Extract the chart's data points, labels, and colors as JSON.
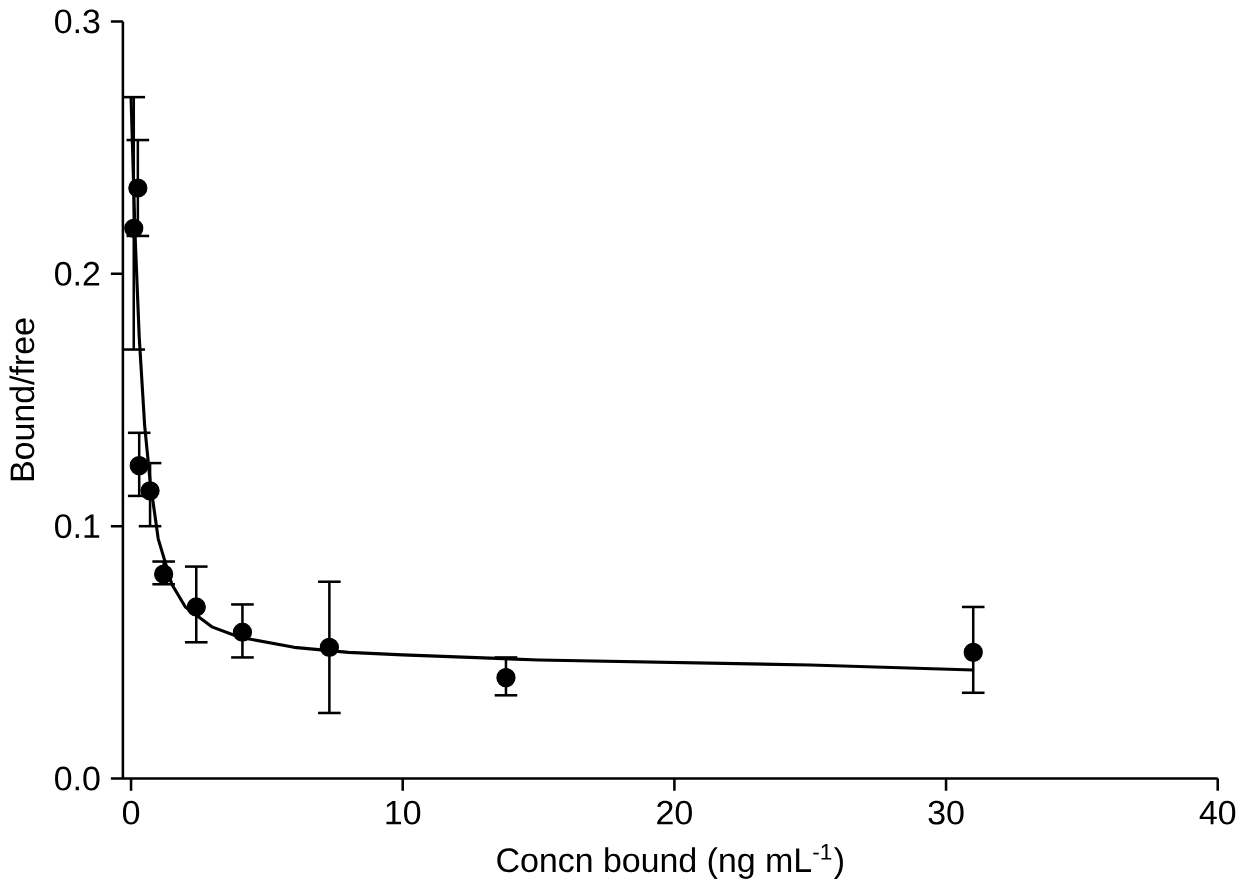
{
  "chart_data": {
    "type": "scatter",
    "xlabel": "Concn bound (ng mL$^{-1}$)",
    "ylabel": "Bound/free",
    "xlim": [
      -0.3,
      40
    ],
    "ylim": [
      0,
      0.3
    ],
    "xticks": [
      0,
      10,
      20,
      30,
      40
    ],
    "yticks": [
      {
        "value": 0,
        "label": "0.0"
      },
      {
        "value": 0.1,
        "label": "0.1"
      },
      {
        "value": 0.2,
        "label": "0.2"
      },
      {
        "value": 0.3,
        "label": "0.3"
      }
    ],
    "series": [
      {
        "color": "#000000",
        "marker": "circle",
        "x": [
          0.1,
          0.25,
          0.3,
          0.7,
          1.2,
          2.4,
          4.1,
          7.3,
          13.8,
          31
        ],
        "values": [
          0.218,
          0.234,
          0.124,
          0.114,
          0.081,
          0.068,
          0.058,
          0.052,
          0.04,
          0.05
        ],
        "errors": [
          [
            0.17,
            0.27
          ],
          [
            0.215,
            0.253
          ],
          [
            0.112,
            0.137
          ],
          [
            0.1,
            0.125
          ],
          [
            0.077,
            0.086
          ],
          [
            0.054,
            0.084
          ],
          [
            0.048,
            0.069
          ],
          [
            0.026,
            0.078
          ],
          [
            0.033,
            0.048
          ],
          [
            0.034,
            0.068
          ]
        ]
      },
      {
        "type": "line",
        "color": "#000000",
        "marker": "none",
        "line_style": "solid",
        "x": [
          0,
          0.15,
          0.3,
          0.5,
          0.7,
          1,
          1.5,
          2,
          3,
          4,
          6,
          8,
          10,
          15,
          20,
          25,
          31
        ],
        "values": [
          0.27,
          0.215,
          0.175,
          0.14,
          0.118,
          0.095,
          0.077,
          0.068,
          0.06,
          0.056,
          0.052,
          0.05,
          0.049,
          0.047,
          0.046,
          0.045,
          0.043
        ]
      }
    ]
  }
}
